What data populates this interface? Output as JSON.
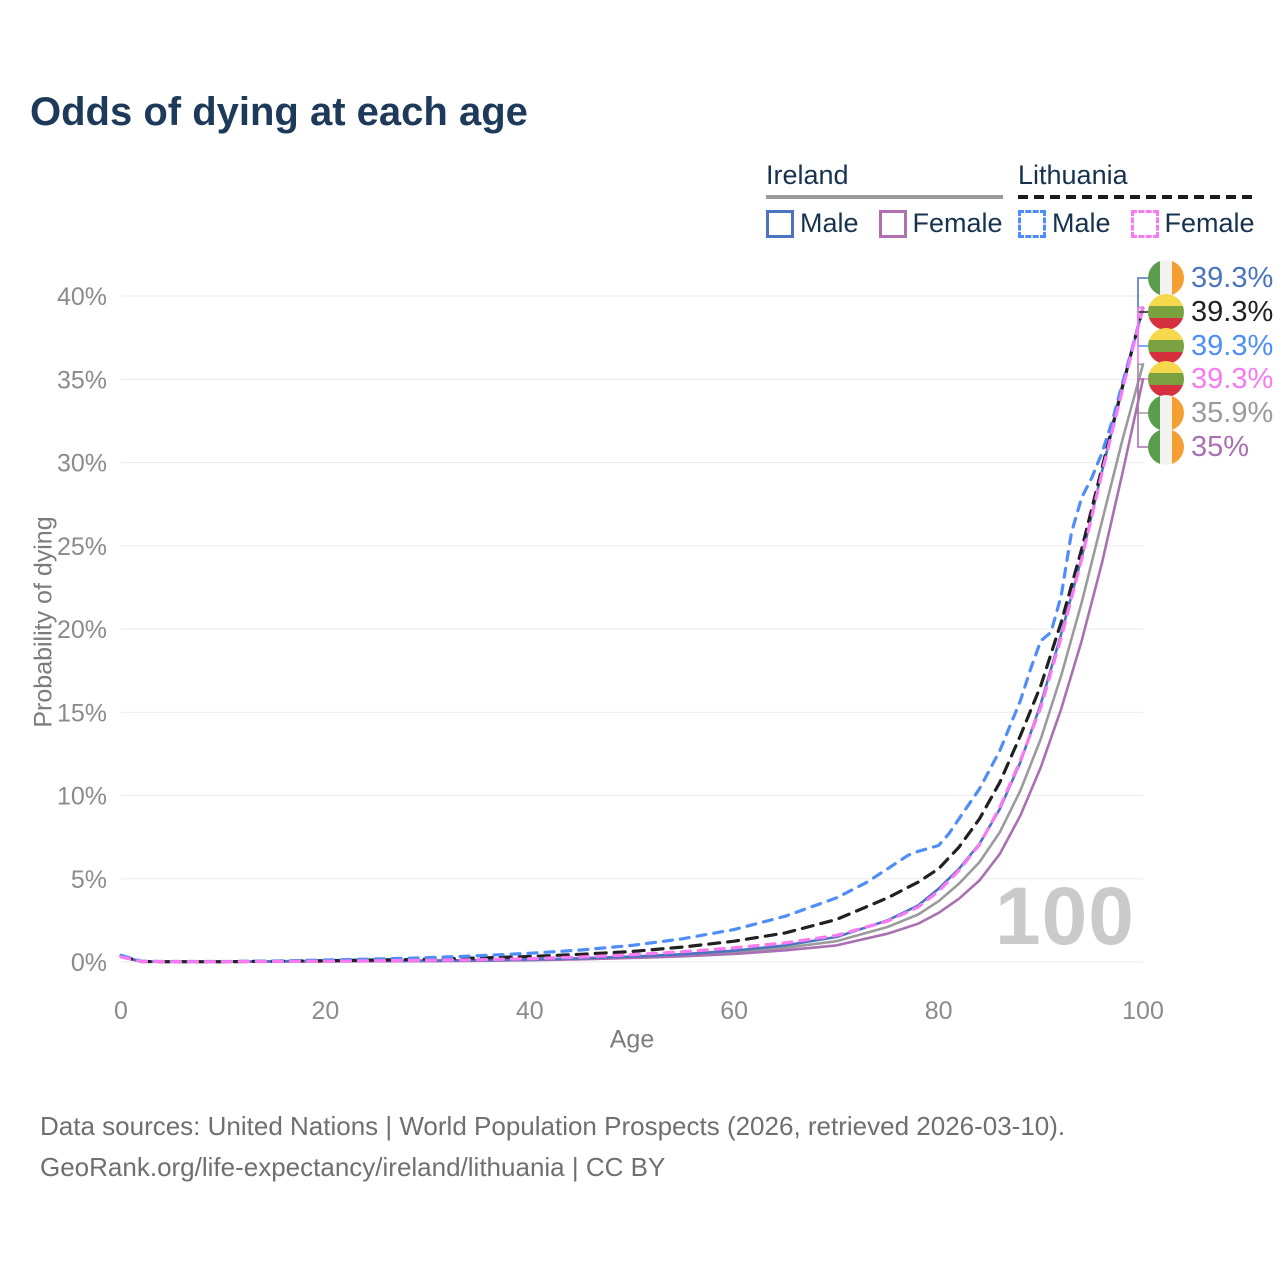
{
  "title": "Odds of dying at each age",
  "legend": {
    "groups": [
      {
        "id": "ireland",
        "label": "Ireland",
        "underline_style": "solid",
        "underline_color": "#9b9b9b",
        "items": [
          {
            "label": "Male",
            "color": "#4b74c0",
            "style": "solid"
          },
          {
            "label": "Female",
            "color": "#ad6fad",
            "style": "solid"
          }
        ]
      },
      {
        "id": "lithuania",
        "label": "Lithuania",
        "underline_style": "dashed",
        "underline_color": "#1a1a1a",
        "items": [
          {
            "label": "Male",
            "color": "#4f8ef7",
            "style": "dashed"
          },
          {
            "label": "Female",
            "color": "#f879f2",
            "style": "dashed"
          }
        ]
      }
    ]
  },
  "chart_data": {
    "type": "line",
    "title": "Odds of dying at each age",
    "xlabel": "Age",
    "ylabel": "Probability of dying",
    "xlim": [
      0,
      100
    ],
    "ylim": [
      0,
      40
    ],
    "xticks": [
      0,
      20,
      40,
      60,
      80,
      100
    ],
    "yticks": [
      0,
      5,
      10,
      15,
      20,
      25,
      30,
      35,
      40
    ],
    "ytick_suffix": "%",
    "grid": "horizontal",
    "legend_position": "top-right",
    "watermark_age": "100",
    "series": [
      {
        "id": "ireland-total",
        "name": "Ireland Total",
        "country": "Ireland",
        "sex": "Total",
        "color": "#9b9b9b",
        "style": "solid",
        "width": 2.6,
        "dash": "",
        "points": [
          [
            0,
            0.33
          ],
          [
            2,
            0.03
          ],
          [
            5,
            0.01
          ],
          [
            10,
            0.01
          ],
          [
            15,
            0.03
          ],
          [
            20,
            0.05
          ],
          [
            25,
            0.06
          ],
          [
            30,
            0.07
          ],
          [
            35,
            0.09
          ],
          [
            40,
            0.13
          ],
          [
            45,
            0.19
          ],
          [
            50,
            0.28
          ],
          [
            55,
            0.4
          ],
          [
            60,
            0.57
          ],
          [
            65,
            0.85
          ],
          [
            70,
            1.25
          ],
          [
            75,
            2.1
          ],
          [
            78,
            2.85
          ],
          [
            80,
            3.65
          ],
          [
            82,
            4.7
          ],
          [
            84,
            6.0
          ],
          [
            86,
            7.8
          ],
          [
            88,
            10.3
          ],
          [
            90,
            13.4
          ],
          [
            92,
            17.2
          ],
          [
            94,
            21.6
          ],
          [
            96,
            26.5
          ],
          [
            98,
            31.4
          ],
          [
            100,
            35.9
          ]
        ]
      },
      {
        "id": "ireland-female",
        "name": "Ireland Female",
        "country": "Ireland",
        "sex": "Female",
        "color": "#a970b2",
        "style": "solid",
        "width": 2.6,
        "dash": "",
        "points": [
          [
            0,
            0.3
          ],
          [
            2,
            0.02
          ],
          [
            5,
            0.01
          ],
          [
            10,
            0.01
          ],
          [
            15,
            0.02
          ],
          [
            20,
            0.03
          ],
          [
            25,
            0.04
          ],
          [
            30,
            0.05
          ],
          [
            35,
            0.07
          ],
          [
            40,
            0.11
          ],
          [
            45,
            0.16
          ],
          [
            50,
            0.24
          ],
          [
            55,
            0.34
          ],
          [
            60,
            0.48
          ],
          [
            65,
            0.7
          ],
          [
            70,
            1.0
          ],
          [
            75,
            1.7
          ],
          [
            78,
            2.3
          ],
          [
            80,
            2.95
          ],
          [
            82,
            3.8
          ],
          [
            84,
            4.9
          ],
          [
            86,
            6.5
          ],
          [
            88,
            8.8
          ],
          [
            90,
            11.7
          ],
          [
            92,
            15.2
          ],
          [
            94,
            19.3
          ],
          [
            96,
            24.0
          ],
          [
            98,
            29.4
          ],
          [
            100,
            35.0
          ]
        ]
      },
      {
        "id": "ireland-male",
        "name": "Ireland Male",
        "country": "Ireland",
        "sex": "Male",
        "color": "#4b74c0",
        "style": "solid",
        "width": 2.6,
        "dash": "",
        "points": [
          [
            0,
            0.35
          ],
          [
            2,
            0.03
          ],
          [
            5,
            0.02
          ],
          [
            10,
            0.02
          ],
          [
            15,
            0.04
          ],
          [
            20,
            0.07
          ],
          [
            25,
            0.08
          ],
          [
            30,
            0.09
          ],
          [
            35,
            0.11
          ],
          [
            40,
            0.15
          ],
          [
            45,
            0.22
          ],
          [
            50,
            0.33
          ],
          [
            55,
            0.47
          ],
          [
            60,
            0.68
          ],
          [
            65,
            1.0
          ],
          [
            70,
            1.5
          ],
          [
            75,
            2.5
          ],
          [
            78,
            3.4
          ],
          [
            80,
            4.4
          ],
          [
            82,
            5.6
          ],
          [
            84,
            7.1
          ],
          [
            86,
            9.2
          ],
          [
            88,
            12.0
          ],
          [
            90,
            15.5
          ],
          [
            92,
            19.7
          ],
          [
            94,
            24.3
          ],
          [
            96,
            29.5
          ],
          [
            98,
            34.5
          ],
          [
            100,
            39.3
          ]
        ]
      },
      {
        "id": "lithuania-total",
        "name": "Lithuania Total",
        "country": "Lithuania",
        "sex": "Total",
        "color": "#212121",
        "style": "dashed",
        "width": 3.2,
        "dash": "11 8",
        "points": [
          [
            0,
            0.35
          ],
          [
            2,
            0.03
          ],
          [
            5,
            0.02
          ],
          [
            10,
            0.02
          ],
          [
            15,
            0.05
          ],
          [
            20,
            0.08
          ],
          [
            25,
            0.12
          ],
          [
            30,
            0.17
          ],
          [
            35,
            0.24
          ],
          [
            40,
            0.33
          ],
          [
            45,
            0.46
          ],
          [
            50,
            0.63
          ],
          [
            55,
            0.9
          ],
          [
            60,
            1.25
          ],
          [
            65,
            1.75
          ],
          [
            70,
            2.55
          ],
          [
            75,
            3.85
          ],
          [
            78,
            4.8
          ],
          [
            80,
            5.6
          ],
          [
            82,
            6.9
          ],
          [
            84,
            8.6
          ],
          [
            86,
            10.8
          ],
          [
            88,
            13.6
          ],
          [
            90,
            16.6
          ],
          [
            92,
            20.4
          ],
          [
            94,
            24.8
          ],
          [
            96,
            29.7
          ],
          [
            98,
            34.6
          ],
          [
            100,
            39.3
          ]
        ]
      },
      {
        "id": "lithuania-male",
        "name": "Lithuania Male",
        "country": "Lithuania",
        "sex": "Male",
        "color": "#4f8ef7",
        "style": "dashed",
        "width": 3.2,
        "dash": "9 8",
        "points": [
          [
            0,
            0.4
          ],
          [
            2,
            0.04
          ],
          [
            5,
            0.03
          ],
          [
            10,
            0.03
          ],
          [
            15,
            0.06
          ],
          [
            20,
            0.12
          ],
          [
            25,
            0.18
          ],
          [
            30,
            0.26
          ],
          [
            35,
            0.38
          ],
          [
            40,
            0.52
          ],
          [
            45,
            0.72
          ],
          [
            50,
            1.0
          ],
          [
            55,
            1.4
          ],
          [
            60,
            1.95
          ],
          [
            65,
            2.75
          ],
          [
            70,
            3.85
          ],
          [
            73,
            4.8
          ],
          [
            75,
            5.6
          ],
          [
            77,
            6.4
          ],
          [
            78,
            6.65
          ],
          [
            80,
            7.0
          ],
          [
            81,
            7.7
          ],
          [
            82,
            8.6
          ],
          [
            84,
            10.4
          ],
          [
            86,
            12.7
          ],
          [
            88,
            15.7
          ],
          [
            89,
            17.6
          ],
          [
            90,
            19.3
          ],
          [
            91,
            19.8
          ],
          [
            92,
            22.0
          ],
          [
            93,
            25.8
          ],
          [
            94,
            27.9
          ],
          [
            95,
            29.1
          ],
          [
            96,
            30.6
          ],
          [
            97,
            32.5
          ],
          [
            98,
            34.8
          ],
          [
            99,
            37.0
          ],
          [
            100,
            39.3
          ]
        ]
      },
      {
        "id": "lithuania-female",
        "name": "Lithuania Female",
        "country": "Lithuania",
        "sex": "Female",
        "color": "#f879f2",
        "style": "dashed",
        "width": 3.2,
        "dash": "9 8",
        "points": [
          [
            0,
            0.3
          ],
          [
            2,
            0.03
          ],
          [
            5,
            0.02
          ],
          [
            10,
            0.02
          ],
          [
            15,
            0.03
          ],
          [
            20,
            0.05
          ],
          [
            25,
            0.07
          ],
          [
            30,
            0.1
          ],
          [
            35,
            0.14
          ],
          [
            40,
            0.2
          ],
          [
            45,
            0.3
          ],
          [
            50,
            0.44
          ],
          [
            55,
            0.62
          ],
          [
            60,
            0.85
          ],
          [
            65,
            1.15
          ],
          [
            70,
            1.6
          ],
          [
            75,
            2.45
          ],
          [
            78,
            3.3
          ],
          [
            80,
            4.25
          ],
          [
            82,
            5.5
          ],
          [
            84,
            7.05
          ],
          [
            86,
            9.3
          ],
          [
            88,
            12.1
          ],
          [
            90,
            15.3
          ],
          [
            92,
            19.5
          ],
          [
            94,
            24.2
          ],
          [
            96,
            29.4
          ],
          [
            98,
            34.4
          ],
          [
            100,
            39.3
          ]
        ]
      }
    ]
  },
  "end_labels": [
    {
      "value": "39.3%",
      "series": "Ireland Male",
      "flag": "ireland",
      "color": "#4b74c0",
      "end_pct": 39.3
    },
    {
      "value": "39.3%",
      "series": "Lithuania Total",
      "flag": "lithuania",
      "color": "#212121",
      "end_pct": 39.3
    },
    {
      "value": "39.3%",
      "series": "Lithuania Male",
      "flag": "lithuania",
      "color": "#4f8ef7",
      "end_pct": 39.3
    },
    {
      "value": "39.3%",
      "series": "Lithuania Female",
      "flag": "lithuania",
      "color": "#f879f2",
      "end_pct": 39.3
    },
    {
      "value": "35.9%",
      "series": "Ireland Total",
      "flag": "ireland",
      "color": "#9b9b9b",
      "end_pct": 35.9
    },
    {
      "value": "35%",
      "series": "Ireland Female",
      "flag": "ireland",
      "color": "#a970b2",
      "end_pct": 35.0
    }
  ],
  "flags": {
    "ireland": [
      "#5b9d4c",
      "#f2f2ee",
      "#f59f33"
    ],
    "lithuania": [
      "#f6d84d",
      "#7aa13f",
      "#d62f3e"
    ]
  },
  "footer": {
    "line1": "Data sources: United Nations | World Population Prospects (2026, retrieved 2026-03-10).",
    "line2": "GeoRank.org/life-expectancy/ireland/lithuania | CC BY"
  }
}
